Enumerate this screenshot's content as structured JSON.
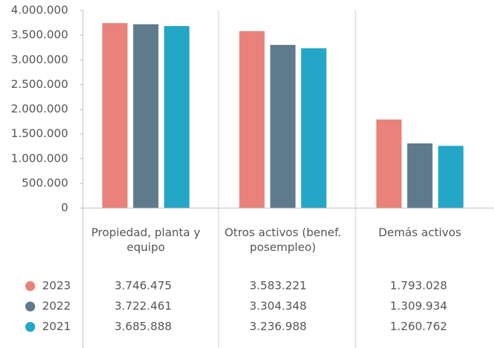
{
  "chart_data": {
    "type": "bar",
    "categories": [
      "Propiedad, planta y equipo",
      "Otros activos (benef. posempleo)",
      "Demás activos"
    ],
    "series": [
      {
        "name": "2023",
        "color": "#e9827a",
        "values": [
          3746475,
          3583221,
          1793028
        ],
        "value_labels": [
          "3.746.475",
          "3.583.221",
          "1.793.028"
        ]
      },
      {
        "name": "2022",
        "color": "#5f7a8c",
        "values": [
          3722461,
          3304348,
          1309934
        ],
        "value_labels": [
          "3.722.461",
          "3.304.348",
          "1.309.934"
        ]
      },
      {
        "name": "2021",
        "color": "#24a6c6",
        "values": [
          3685888,
          3236988,
          1260762
        ],
        "value_labels": [
          "3.685.888",
          "3.236.988",
          "1.260.762"
        ]
      }
    ],
    "ylim": [
      0,
      4000000
    ],
    "yticks": [
      0,
      {
        "value": 500000,
        "label": "500.000"
      },
      {
        "value": 1000000,
        "label": "1.000.000"
      },
      {
        "value": 1500000,
        "label": "1.500.000"
      },
      {
        "value": 2000000,
        "label": "2.000.000"
      },
      {
        "value": 2500000,
        "label": "2.500.000"
      },
      {
        "value": 3000000,
        "label": "3.000.000"
      },
      {
        "value": 3500000,
        "label": "3.500.000"
      },
      {
        "value": 4000000,
        "label": "4.000.000"
      }
    ],
    "grid": false
  }
}
